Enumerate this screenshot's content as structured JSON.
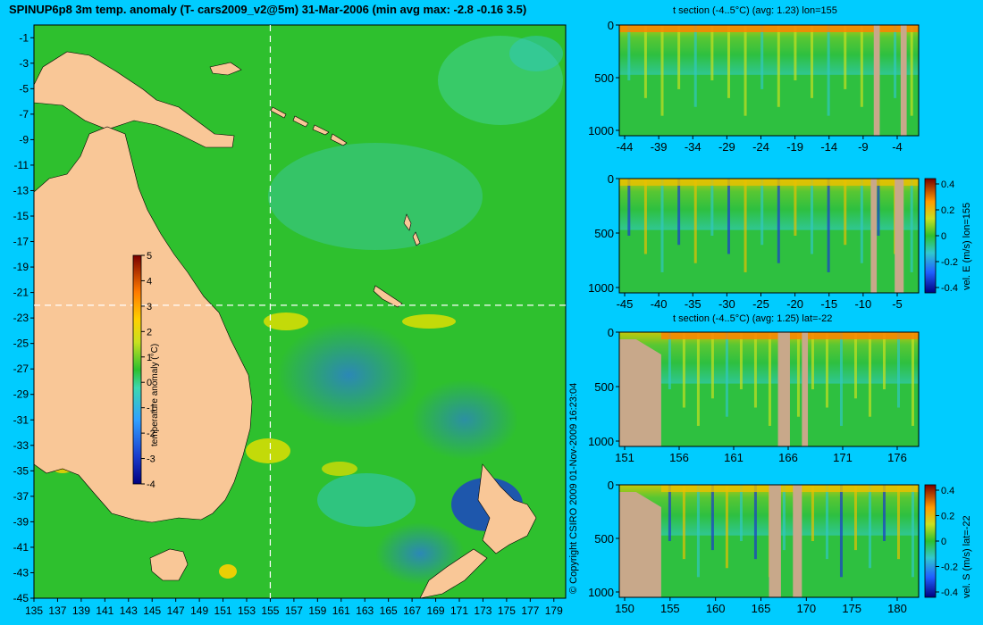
{
  "title": "SPINUP6p8 3m temp. anomaly (T- cars2009_v2@5m) 31-Mar-2006 (min avg max: -2.8 -0.16 3.5)",
  "copyright": "© Copyright CSIRO 2009   01-Nov-2009 16:23:04",
  "map": {
    "lat_ticks": [
      "-1",
      "-3",
      "-5",
      "-7",
      "-9",
      "-11",
      "-13",
      "-15",
      "-17",
      "-19",
      "-21",
      "-23",
      "-25",
      "-27",
      "-29",
      "-31",
      "-33",
      "-35",
      "-37",
      "-39",
      "-41",
      "-43",
      "-45"
    ],
    "lon_ticks": [
      "135",
      "137",
      "139",
      "141",
      "143",
      "145",
      "147",
      "149",
      "151",
      "153",
      "155",
      "157",
      "159",
      "161",
      "163",
      "165",
      "167",
      "169",
      "171",
      "173",
      "175",
      "177",
      "179"
    ],
    "colorbar": {
      "label": "temperature anomaly (°C)",
      "ticks": [
        "5",
        "4",
        "3",
        "2",
        "1",
        "0",
        "-1",
        "-2",
        "-3",
        "-4"
      ]
    },
    "section_lon": 155,
    "section_lat": -22
  },
  "panels": [
    {
      "title": "t section (-4..5°C) (avg: 1.23) lon=155",
      "y_ticks": [
        "0",
        "500",
        "1000"
      ],
      "x_ticks": [
        "-44",
        "-39",
        "-34",
        "-29",
        "-24",
        "-19",
        "-14",
        "-9",
        "-4"
      ],
      "colorbar": null
    },
    {
      "title": "",
      "y_ticks": [
        "0",
        "500",
        "1000"
      ],
      "x_ticks": [
        "-45",
        "-40",
        "-35",
        "-30",
        "-25",
        "-20",
        "-15",
        "-10",
        "-5"
      ],
      "colorbar": {
        "label": "vel. E (m/s) lon=155",
        "ticks": [
          "0.4",
          "0.2",
          "0",
          "-0.2",
          "-0.4"
        ]
      }
    },
    {
      "title": "t section (-4..5°C) (avg: 1.25) lat=-22",
      "y_ticks": [
        "0",
        "500",
        "1000"
      ],
      "x_ticks": [
        "151",
        "156",
        "161",
        "166",
        "171",
        "176"
      ],
      "colorbar": null
    },
    {
      "title": "",
      "y_ticks": [
        "0",
        "500",
        "1000"
      ],
      "x_ticks": [
        "150",
        "155",
        "160",
        "165",
        "170",
        "175",
        "180"
      ],
      "colorbar": {
        "label": "vel. S (m/s) lat=-22",
        "ticks": [
          "0.4",
          "0.2",
          "0",
          "-0.2",
          "-0.4"
        ]
      }
    }
  ],
  "colors": {
    "background": "#00ccff",
    "land": "#f9c797",
    "section_land": "#c8a88a",
    "ocean_green": "#2ec02e"
  }
}
